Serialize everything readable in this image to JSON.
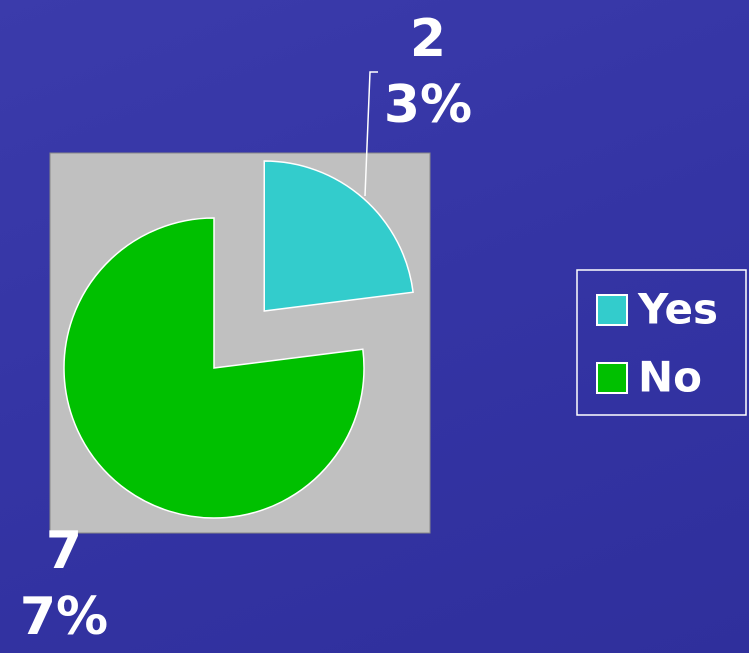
{
  "chart_data": {
    "type": "pie",
    "categories": [
      "Yes",
      "No"
    ],
    "values": [
      23,
      77
    ],
    "value_labels": [
      "23%",
      "77%"
    ],
    "colors": [
      "#33cccc",
      "#00c000"
    ],
    "legend": "right"
  }
}
